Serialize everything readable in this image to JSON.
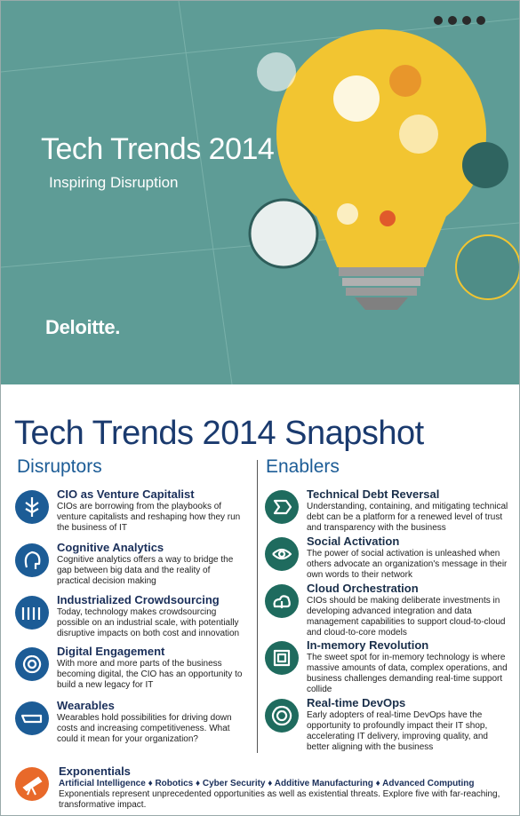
{
  "cover": {
    "title": "Tech Trends 2014",
    "subtitle": "Inspiring Disruption",
    "brand": "Deloitte."
  },
  "snapshot": {
    "title": "Tech Trends 2014 Snapshot",
    "columns": [
      {
        "heading": "Disruptors",
        "items": [
          {
            "title": "CIO as Venture Capitalist",
            "text": "CIOs are borrowing from the playbooks of venture capitalists and reshaping how they run the business of IT"
          },
          {
            "title": "Cognitive Analytics",
            "text": "Cognitive analytics offers a way to bridge the gap between big data and the reality of practical decision making"
          },
          {
            "title": "Industrialized Crowdsourcing",
            "text": "Today, technology makes crowdsourcing possible on an industrial scale, with potentially disruptive impacts on both cost and innovation"
          },
          {
            "title": "Digital Engagement",
            "text": "With more and more parts of the business becoming digital, the CIO has an opportunity to build a new legacy for IT"
          },
          {
            "title": "Wearables",
            "text": "Wearables hold possibilities for driving down costs and increasing competitiveness. What could it mean for your organization?"
          }
        ]
      },
      {
        "heading": "Enablers",
        "items": [
          {
            "title": "Technical Debt Reversal",
            "text": "Understanding, containing, and mitigating technical debt can be a platform for a renewed level of trust and transparency with the business"
          },
          {
            "title": "Social Activation",
            "text": "The power of social activation is unleashed when others advocate an organization's message in their own words to their network"
          },
          {
            "title": "Cloud Orchestration",
            "text": "CIOs should be making deliberate investments in developing advanced integration and data management capabilities to support cloud-to-cloud and cloud-to-core models"
          },
          {
            "title": "In-memory Revolution",
            "text": "The sweet spot for in-memory technology is where massive amounts of data, complex operations, and business challenges demanding real-time support collide"
          },
          {
            "title": "Real-time DevOps",
            "text": "Early adopters of real-time DevOps have the opportunity to profoundly impact their IT shop, accelerating IT delivery, improving quality, and better aligning with the business"
          }
        ]
      }
    ],
    "exponentials": {
      "title": "Exponentials",
      "topics": "Artificial Intelligence ♦ Robotics ♦ Cyber Security ♦ Additive Manufacturing ♦ Advanced Computing",
      "text": "Exponentials represent unprecedented opportunities as well as existential threats. Explore five with far-reaching, transformative impact."
    }
  }
}
